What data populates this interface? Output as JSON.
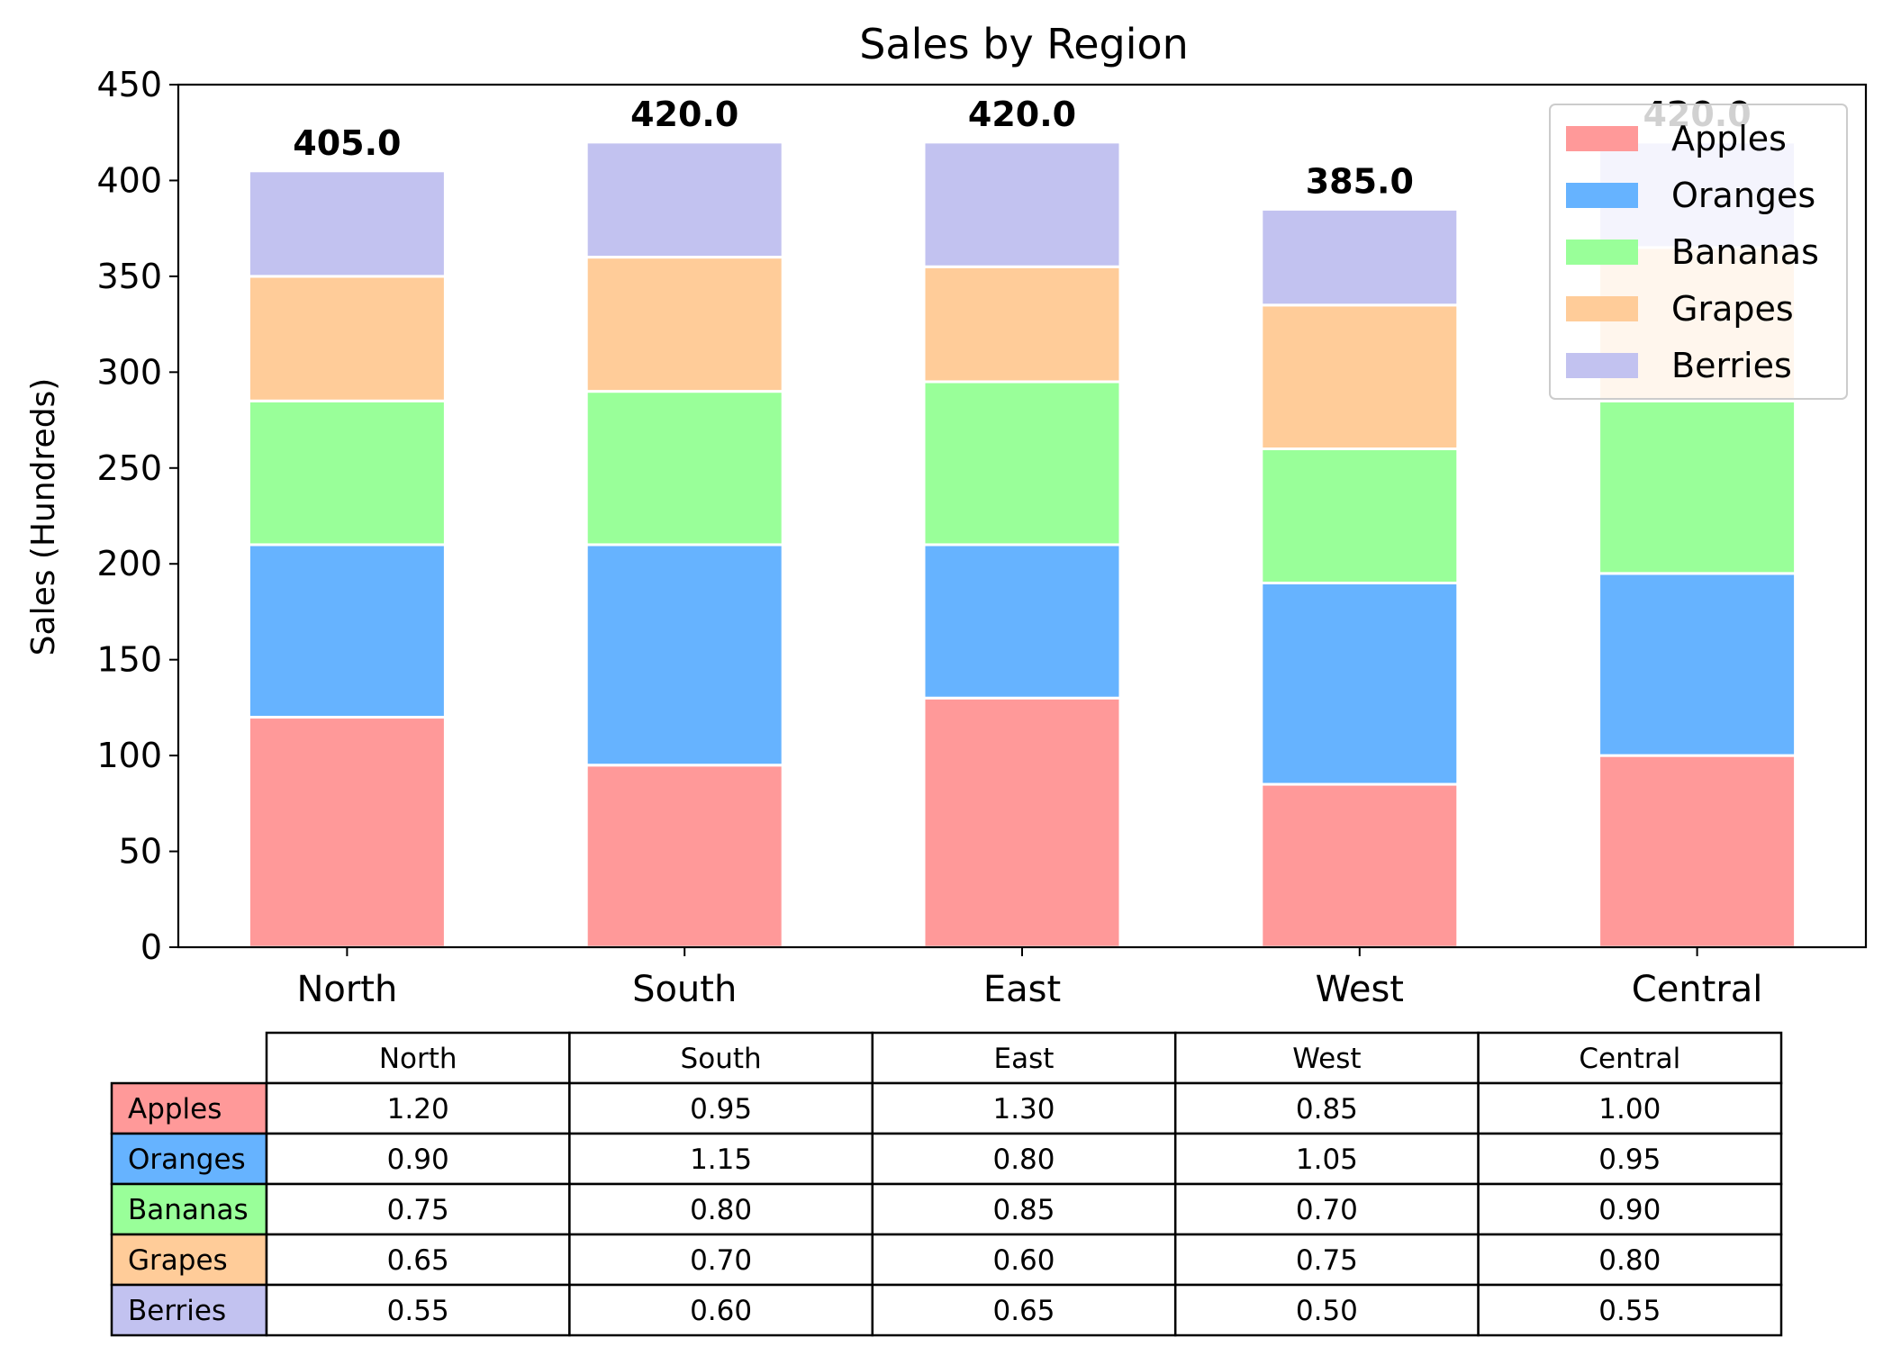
{
  "chart_data": {
    "type": "bar",
    "stacked": true,
    "title": "Sales by Region",
    "xlabel": "",
    "ylabel": "Sales (Hundreds)",
    "ylim": [
      0,
      450
    ],
    "yticks": [
      "0",
      "50",
      "100",
      "150",
      "200",
      "250",
      "300",
      "350",
      "400",
      "450"
    ],
    "categories": [
      "North",
      "South",
      "East",
      "West",
      "Central"
    ],
    "series": [
      {
        "name": "Apples",
        "color": "#ff9999",
        "values": [
          120,
          95,
          130,
          85,
          100
        ]
      },
      {
        "name": "Oranges",
        "color": "#66b3ff",
        "values": [
          90,
          115,
          80,
          105,
          95
        ]
      },
      {
        "name": "Bananas",
        "color": "#99ff99",
        "values": [
          75,
          80,
          85,
          70,
          90
        ]
      },
      {
        "name": "Grapes",
        "color": "#ffcc99",
        "values": [
          65,
          70,
          60,
          75,
          80
        ]
      },
      {
        "name": "Berries",
        "color": "#c2c2f0",
        "values": [
          55,
          60,
          65,
          50,
          55
        ]
      }
    ],
    "totals": [
      "405.0",
      "420.0",
      "420.0",
      "385.0",
      "420.0"
    ],
    "legend": {
      "placement": "top-right",
      "entries": [
        "Apples",
        "Oranges",
        "Bananas",
        "Grapes",
        "Berries"
      ]
    },
    "grid": false,
    "table": {
      "col_labels": [
        "North",
        "South",
        "East",
        "West",
        "Central"
      ],
      "row_labels": [
        "Apples",
        "Oranges",
        "Bananas",
        "Grapes",
        "Berries"
      ],
      "cells": [
        [
          "1.20",
          "0.95",
          "1.30",
          "0.85",
          "1.00"
        ],
        [
          "0.90",
          "1.15",
          "0.80",
          "1.05",
          "0.95"
        ],
        [
          "0.75",
          "0.80",
          "0.85",
          "0.70",
          "0.90"
        ],
        [
          "0.65",
          "0.70",
          "0.60",
          "0.75",
          "0.80"
        ],
        [
          "0.55",
          "0.60",
          "0.65",
          "0.50",
          "0.55"
        ]
      ]
    }
  }
}
